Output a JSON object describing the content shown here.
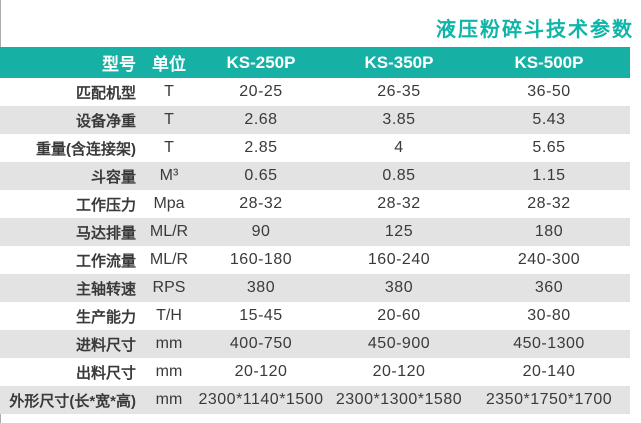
{
  "title": "液压粉碎斗技术参数",
  "colors": {
    "accent_teal": "#16b0a4",
    "title_teal": "#0eb5a8",
    "row_alt_gray": "#e3e3e3",
    "text": "#3a3a3a"
  },
  "table": {
    "headers": {
      "model": "型号",
      "unit": "单位",
      "col1": "KS-250P",
      "col2": "KS-350P",
      "col3": "KS-500P"
    },
    "rows": [
      {
        "label": "匹配机型",
        "unit": "T",
        "values": [
          "20-25",
          "26-35",
          "36-50"
        ]
      },
      {
        "label": "设备净重",
        "unit": "T",
        "values": [
          "2.68",
          "3.85",
          "5.43"
        ]
      },
      {
        "label": "重量(含连接架)",
        "unit": "T",
        "values": [
          "2.85",
          "4",
          "5.65"
        ]
      },
      {
        "label": "斗容量",
        "unit": "M³",
        "values": [
          "0.65",
          "0.85",
          "1.15"
        ]
      },
      {
        "label": "工作压力",
        "unit": "Mpa",
        "values": [
          "28-32",
          "28-32",
          "28-32"
        ]
      },
      {
        "label": "马达排量",
        "unit": "ML/R",
        "values": [
          "90",
          "125",
          "180"
        ]
      },
      {
        "label": "工作流量",
        "unit": "ML/R",
        "values": [
          "160-180",
          "160-240",
          "240-300"
        ]
      },
      {
        "label": "主轴转速",
        "unit": "RPS",
        "values": [
          "380",
          "380",
          "360"
        ]
      },
      {
        "label": "生产能力",
        "unit": "T/H",
        "values": [
          "15-45",
          "20-60",
          "30-80"
        ]
      },
      {
        "label": "进料尺寸",
        "unit": "mm",
        "values": [
          "400-750",
          "450-900",
          "450-1300"
        ]
      },
      {
        "label": "出料尺寸",
        "unit": "mm",
        "values": [
          "20-120",
          "20-120",
          "20-140"
        ]
      },
      {
        "label": "外形尺寸(长*宽*高)",
        "unit": "mm",
        "values": [
          "2300*1140*1500",
          "2300*1300*1580",
          "2350*1750*1700"
        ]
      }
    ]
  }
}
